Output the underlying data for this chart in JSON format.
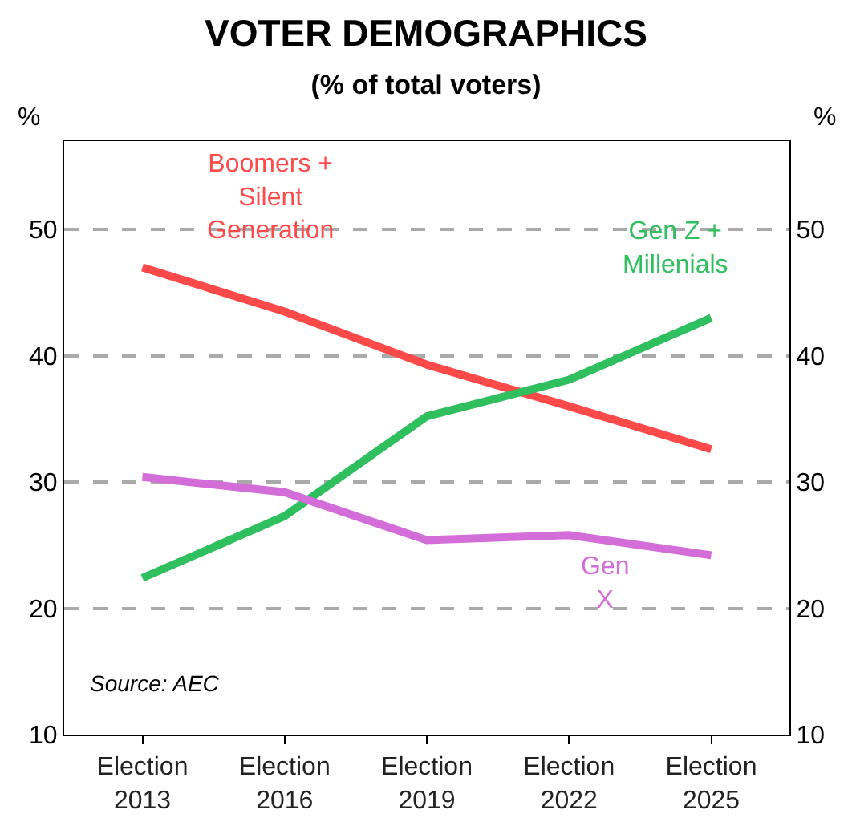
{
  "chart_data": {
    "type": "line",
    "title": "VOTER DEMOGRAPHICS",
    "subtitle": "(% of total voters)",
    "ylabel": "%",
    "y2label": "%",
    "categories": [
      "Election\n2013",
      "Election\n2016",
      "Election\n2019",
      "Election\n2022",
      "Election\n2025"
    ],
    "series": [
      {
        "name": "Boomers +\nSilent\nGeneration",
        "color": "#ff4a4a",
        "values": [
          47,
          43.5,
          39.3,
          36,
          32.6
        ]
      },
      {
        "name": "Gen Z +\nMillenials",
        "color": "#2fbf5f",
        "values": [
          22.4,
          27.3,
          35.2,
          38.1,
          43
        ]
      },
      {
        "name": "Gen\nX",
        "color": "#d36ed8",
        "values": [
          30.4,
          29.2,
          25.4,
          25.8,
          24.2
        ]
      }
    ],
    "ylim": [
      10,
      57
    ],
    "yticks": [
      10,
      20,
      30,
      40,
      50
    ],
    "y2lim": [
      10,
      57
    ],
    "y2ticks": [
      10,
      20,
      30,
      40,
      50
    ],
    "grid": "y",
    "legend": false,
    "marker": "none",
    "line_style": "solid",
    "annotations": [
      "Source: AEC"
    ]
  }
}
